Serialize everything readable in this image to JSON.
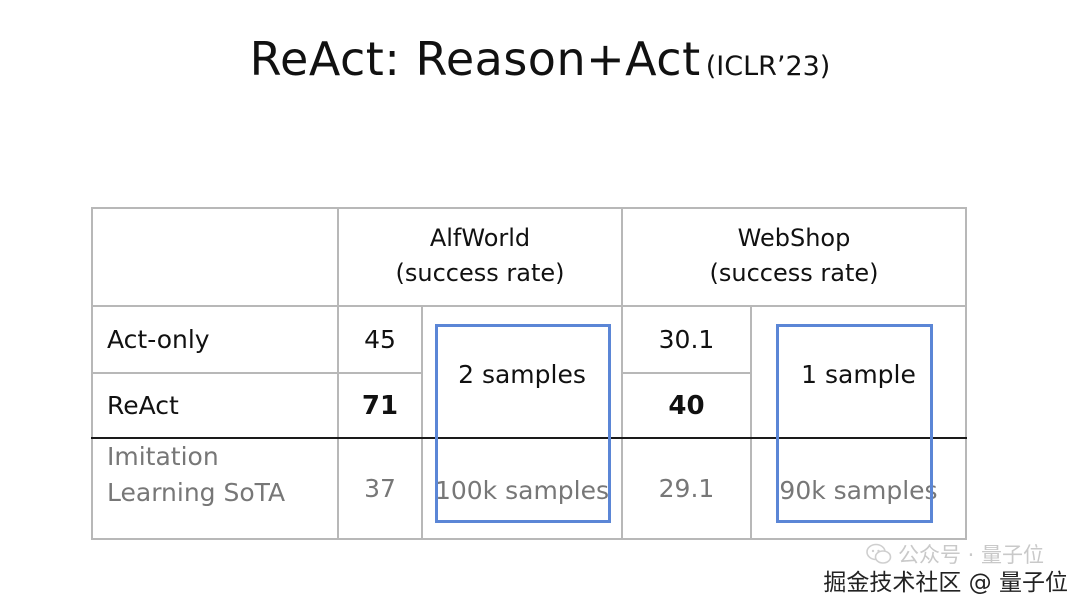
{
  "title": {
    "main": "ReAct: Reason+Act",
    "venue": "(ICLR’23)"
  },
  "table": {
    "headers": {
      "alfworld_name": "AlfWorld",
      "alfworld_metric": "(success rate)",
      "webshop_name": "WebShop",
      "webshop_metric": "(success rate)"
    },
    "rows": [
      {
        "method": "Act-only",
        "alfworld": "45",
        "webshop": "30.1"
      },
      {
        "method": "ReAct",
        "alfworld": "71",
        "webshop": "40"
      },
      {
        "method_line1": "Imitation",
        "method_line2": "Learning SoTA",
        "alfworld": "37",
        "webshop": "29.1"
      }
    ],
    "alfworld_samples_few": "2 samples",
    "alfworld_samples_il": "100k samples",
    "webshop_samples_few": "1 sample",
    "webshop_samples_il": "90k samples"
  },
  "colors": {
    "box_border": "#5b86d6",
    "grid_line": "#b8b8b8",
    "separator_line": "#1a1a1a",
    "muted_text": "#777777"
  },
  "watermark": {
    "faded_text": "公众号 · 量子位",
    "text": "掘金技术社区 @ 量子位",
    "icon": "wechat-icon"
  }
}
